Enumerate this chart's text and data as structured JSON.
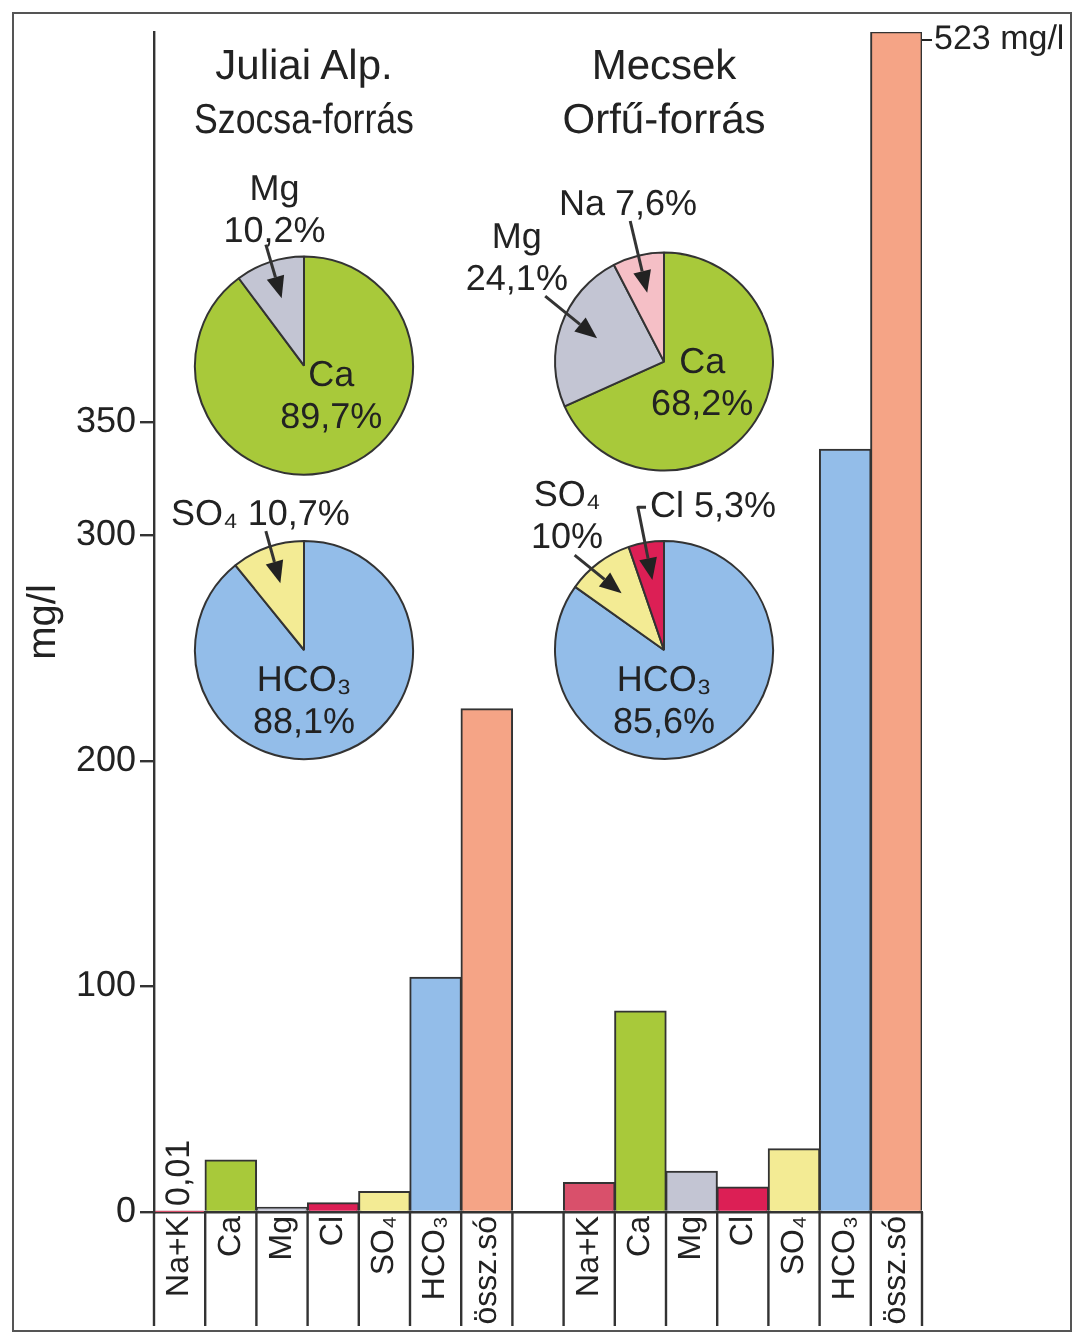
{
  "chart_data": [
    {
      "type": "bar",
      "categories": [
        "Na+K",
        "Ca",
        "Mg",
        "Cl",
        "SO₄",
        "HCO₃",
        "össz.só",
        null,
        "Na+K",
        "Ca",
        "Mg",
        "Cl",
        "SO₄",
        "HCO₃",
        "össz.só"
      ],
      "values": [
        0.01,
        23,
        2,
        4,
        9,
        104,
        223,
        null,
        13,
        89,
        18,
        11,
        28,
        338,
        523
      ],
      "colors": [
        "#d9506b",
        "#a8c93a",
        "#c3c5d3",
        "#dc1f55",
        "#f3eb94",
        "#93bde9",
        "#f5a486",
        null,
        "#d9506b",
        "#a8c93a",
        "#c3c5d3",
        "#dc1f55",
        "#f3eb94",
        "#93bde9",
        "#f5a486"
      ],
      "value_labels": [
        "0,01",
        null,
        null,
        null,
        null,
        null,
        null,
        null,
        null,
        null,
        null,
        null,
        null,
        null,
        "523 mg/l"
      ],
      "ylabel": "mg/l",
      "ylim": [
        0,
        523
      ],
      "yticks": [
        0,
        100,
        200,
        300,
        350
      ]
    },
    {
      "type": "pie",
      "title": "Juliai Alp. Szocsa-forrás",
      "categories": [
        "Ca",
        "Mg"
      ],
      "values": [
        89.7,
        10.2
      ],
      "value_labels": [
        "89,7%",
        "10,2%"
      ],
      "colors": [
        "#a8c93a",
        "#c3c5d3"
      ]
    },
    {
      "type": "pie",
      "categories": [
        "HCO₃",
        "SO₄"
      ],
      "values": [
        88.1,
        10.7
      ],
      "value_labels": [
        "88,1%",
        "10,7%"
      ],
      "colors": [
        "#93bde9",
        "#f3eb94"
      ]
    },
    {
      "type": "pie",
      "title": "Mecsek Orfű-forrás",
      "categories": [
        "Ca",
        "Mg",
        "Na"
      ],
      "values": [
        68.2,
        24.1,
        7.6
      ],
      "value_labels": [
        "68,2%",
        "24,1%",
        "7,6%"
      ],
      "colors": [
        "#a8c93a",
        "#c3c5d3",
        "#f5bfc6"
      ]
    },
    {
      "type": "pie",
      "categories": [
        "HCO₃",
        "SO₄",
        "Cl"
      ],
      "values": [
        85.6,
        10,
        5.3
      ],
      "value_labels": [
        "85,6%",
        "10%",
        "5,3%"
      ],
      "colors": [
        "#93bde9",
        "#f3eb94",
        "#dc1f55"
      ]
    }
  ]
}
